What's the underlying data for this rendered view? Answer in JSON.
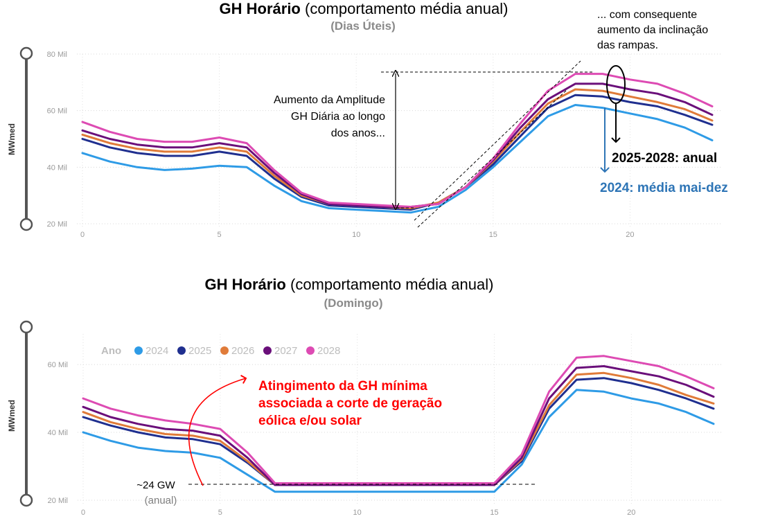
{
  "colors": {
    "2024": "#2e9be6",
    "2025": "#1f2f8f",
    "2026": "#e07b39",
    "2027": "#6a0f7a",
    "2028": "#dd4bb3",
    "annotation_red": "#ff0000",
    "annotation_blue": "#2e75b6"
  },
  "top": {
    "title_bold": "GH Horário",
    "title_rest": " (comportamento média anual)",
    "subtitle": "(Dias Úteis)",
    "annotation_amplitude": [
      "Aumento da Amplitude",
      "GH Diária ao longo",
      "dos anos..."
    ],
    "annotation_ramps": [
      "... com consequente",
      "aumento da inclinação",
      "das rampas."
    ],
    "label_2025_2028": "2025-2028: anual",
    "label_2024": "2024: média mai-dez"
  },
  "bottom": {
    "title_bold": "GH Horário",
    "title_rest": " (comportamento média anual)",
    "subtitle": "(Domingo)",
    "annotation_min": [
      "Atingimento da GH mínima",
      "associada a corte de geração",
      "eólica e/ou solar"
    ],
    "label_24gw": "~24 GW",
    "label_anual": "(anual)",
    "legend_title": "Ano"
  },
  "chart_data": [
    {
      "type": "line",
      "title": "GH Horário (comportamento média anual)",
      "subtitle": "(Dias Úteis)",
      "xlabel": "",
      "ylabel": "MWmed",
      "x": [
        0,
        1,
        2,
        3,
        4,
        5,
        6,
        7,
        8,
        9,
        10,
        11,
        12,
        13,
        14,
        15,
        16,
        17,
        18,
        19,
        20,
        21,
        22,
        23
      ],
      "x_ticks": [
        0,
        5,
        10,
        15,
        20
      ],
      "y_ticks": [
        20000,
        40000,
        60000,
        80000
      ],
      "y_tick_labels": [
        "20 Mil",
        "40 Mil",
        "60 Mil",
        "80 Mil"
      ],
      "ylim": [
        20000,
        80000
      ],
      "xlim": [
        0,
        23
      ],
      "grid": true,
      "series": [
        {
          "name": "2024",
          "values": [
            45000,
            42000,
            40000,
            39000,
            39500,
            40500,
            40000,
            33500,
            28000,
            25500,
            25000,
            24500,
            24000,
            26000,
            32000,
            40000,
            49000,
            58000,
            62000,
            61000,
            59000,
            57000,
            54000,
            49500
          ]
        },
        {
          "name": "2025",
          "values": [
            50000,
            47000,
            45000,
            44000,
            44000,
            45500,
            44000,
            36000,
            29500,
            26500,
            26000,
            25500,
            25000,
            27500,
            33000,
            41000,
            51000,
            61000,
            65500,
            65000,
            63000,
            61500,
            58500,
            55000
          ]
        },
        {
          "name": "2026",
          "values": [
            51500,
            48500,
            46500,
            45500,
            45500,
            47000,
            45500,
            37000,
            30000,
            27000,
            26500,
            26000,
            25500,
            27500,
            33000,
            42000,
            52500,
            62500,
            67500,
            67000,
            65000,
            63000,
            60500,
            56500
          ]
        },
        {
          "name": "2027",
          "values": [
            53000,
            50000,
            48000,
            47000,
            47000,
            48500,
            47000,
            38000,
            30500,
            27000,
            26500,
            26000,
            26000,
            27000,
            33000,
            42500,
            54000,
            64000,
            69500,
            69500,
            67500,
            66000,
            63000,
            58500
          ]
        },
        {
          "name": "2028",
          "values": [
            56000,
            52500,
            50000,
            49000,
            49000,
            50500,
            48500,
            39000,
            31000,
            27500,
            27000,
            26500,
            26000,
            27000,
            33000,
            43000,
            55500,
            67000,
            73000,
            73000,
            71000,
            69500,
            66000,
            61500
          ]
        }
      ]
    },
    {
      "type": "line",
      "title": "GH Horário (comportamento média anual)",
      "subtitle": "(Domingo)",
      "xlabel": "",
      "ylabel": "MWmed",
      "legend_title": "Ano",
      "legend_position": "top-left",
      "x": [
        0,
        1,
        2,
        3,
        4,
        5,
        6,
        7,
        8,
        9,
        10,
        11,
        12,
        13,
        14,
        15,
        16,
        17,
        18,
        19,
        20,
        21,
        22,
        23
      ],
      "x_ticks": [
        0,
        5,
        10,
        15,
        20
      ],
      "y_ticks": [
        20000,
        40000,
        60000
      ],
      "y_tick_labels": [
        "20 Mil",
        "40 Mil",
        "60 Mil"
      ],
      "ylim": [
        20000,
        69000
      ],
      "xlim": [
        0,
        23
      ],
      "grid": true,
      "series": [
        {
          "name": "2024",
          "values": [
            40000,
            37500,
            35500,
            34500,
            34000,
            32500,
            27500,
            22500,
            22500,
            22500,
            22500,
            22500,
            22500,
            22500,
            22500,
            22500,
            30500,
            44500,
            52500,
            52000,
            50000,
            48500,
            46000,
            42500
          ]
        },
        {
          "name": "2025",
          "values": [
            44500,
            42000,
            40000,
            38500,
            38000,
            36500,
            31000,
            24500,
            24500,
            24500,
            24500,
            24500,
            24500,
            24500,
            24500,
            24500,
            31500,
            47000,
            55500,
            56000,
            54500,
            52500,
            50000,
            47000
          ]
        },
        {
          "name": "2026",
          "values": [
            46000,
            43000,
            41000,
            39500,
            39000,
            37500,
            31500,
            24500,
            24500,
            24500,
            24500,
            24500,
            24500,
            24500,
            24500,
            24500,
            32000,
            48000,
            57000,
            57500,
            56000,
            54000,
            51000,
            48500
          ]
        },
        {
          "name": "2027",
          "values": [
            47500,
            44500,
            42500,
            41000,
            40500,
            39000,
            32500,
            24500,
            24500,
            24500,
            24500,
            24500,
            24500,
            24500,
            24500,
            24500,
            32500,
            50000,
            59000,
            59500,
            58000,
            56500,
            54000,
            50500
          ]
        },
        {
          "name": "2028",
          "values": [
            50000,
            47000,
            45000,
            43500,
            42500,
            41000,
            34000,
            25000,
            25000,
            25000,
            25000,
            25000,
            25000,
            25000,
            25000,
            25000,
            33500,
            52000,
            62000,
            62500,
            61000,
            59500,
            56500,
            53000
          ]
        }
      ]
    }
  ]
}
